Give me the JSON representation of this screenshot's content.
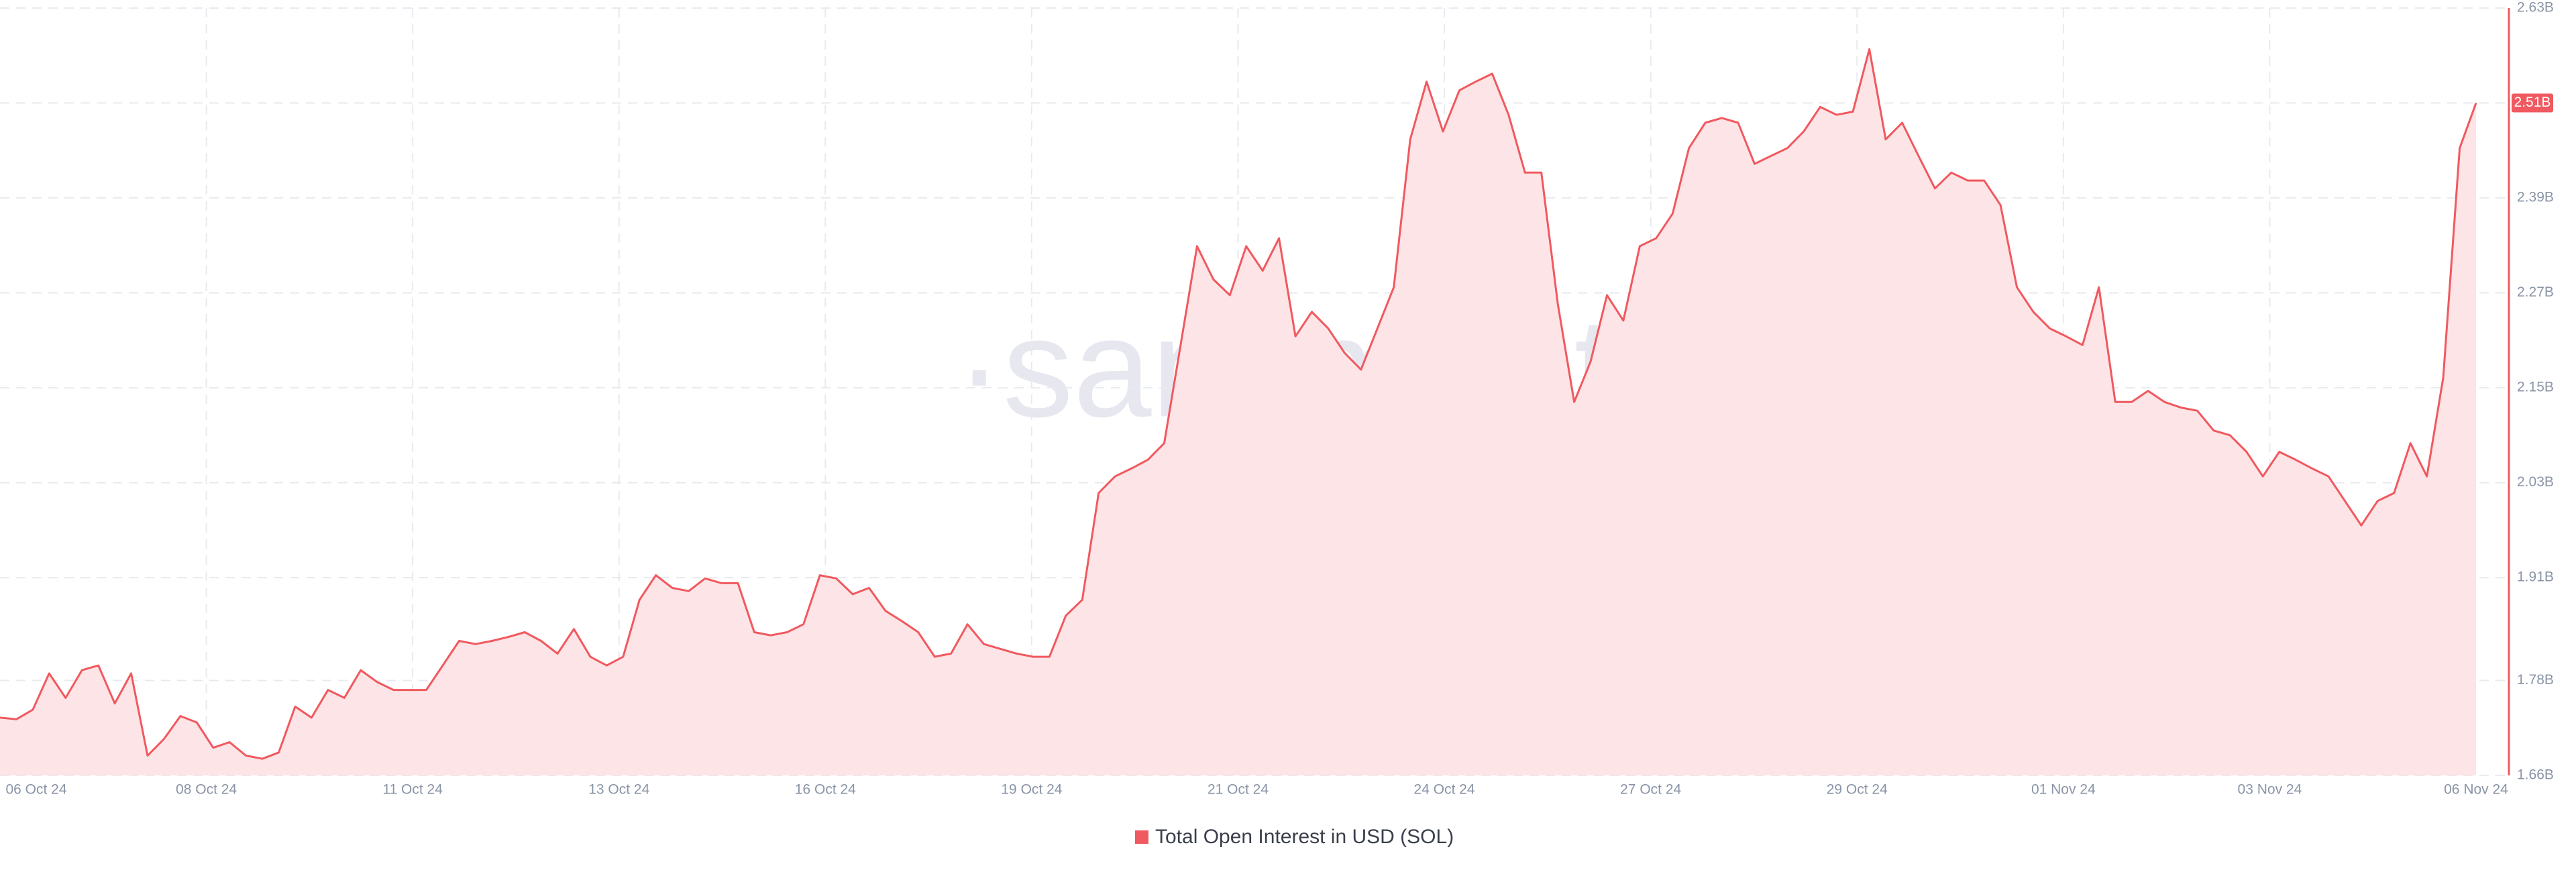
{
  "chart_data": {
    "type": "area",
    "watermark": "·santiment·",
    "x_tick_labels": [
      "06 Oct 24",
      "08 Oct 24",
      "11 Oct 24",
      "13 Oct 24",
      "16 Oct 24",
      "19 Oct 24",
      "21 Oct 24",
      "24 Oct 24",
      "27 Oct 24",
      "29 Oct 24",
      "01 Nov 24",
      "03 Nov 24",
      "06 Nov 24"
    ],
    "ylim": [
      1.66,
      2.63
    ],
    "yticks": [
      {
        "value": 1.66,
        "label": "1.66B"
      },
      {
        "value": 1.78,
        "label": "1.78B"
      },
      {
        "value": 1.91,
        "label": "1.91B"
      },
      {
        "value": 2.03,
        "label": "2.03B"
      },
      {
        "value": 2.15,
        "label": "2.15B"
      },
      {
        "value": 2.27,
        "label": "2.27B"
      },
      {
        "value": 2.39,
        "label": "2.39B"
      },
      {
        "value": 2.51,
        "label": "2.51B"
      },
      {
        "value": 2.63,
        "label": "2.63B"
      }
    ],
    "grid": true,
    "legend": "bottom",
    "series": [
      {
        "name": "Total Open Interest in USD (SOL)",
        "color": "#f0595f",
        "fill": "#fde4e6",
        "values": [
          1.733,
          1.731,
          1.743,
          1.789,
          1.758,
          1.793,
          1.799,
          1.751,
          1.789,
          1.685,
          1.706,
          1.735,
          1.727,
          1.695,
          1.702,
          1.685,
          1.681,
          1.689,
          1.747,
          1.733,
          1.768,
          1.758,
          1.793,
          1.778,
          1.768,
          1.768,
          1.768,
          1.799,
          1.83,
          1.826,
          1.83,
          1.835,
          1.841,
          1.83,
          1.814,
          1.845,
          1.81,
          1.799,
          1.81,
          1.882,
          1.913,
          1.897,
          1.893,
          1.909,
          1.903,
          1.903,
          1.841,
          1.837,
          1.841,
          1.851,
          1.913,
          1.909,
          1.889,
          1.897,
          1.868,
          1.855,
          1.841,
          1.81,
          1.814,
          1.851,
          1.826,
          1.82,
          1.814,
          1.81,
          1.81,
          1.862,
          1.882,
          2.017,
          2.038,
          2.048,
          2.059,
          2.08,
          2.204,
          2.329,
          2.287,
          2.267,
          2.329,
          2.298,
          2.339,
          2.215,
          2.246,
          2.225,
          2.194,
          2.173,
          2.225,
          2.277,
          2.464,
          2.537,
          2.474,
          2.526,
          2.537,
          2.547,
          2.495,
          2.422,
          2.422,
          2.256,
          2.132,
          2.183,
          2.267,
          2.235,
          2.329,
          2.339,
          2.37,
          2.453,
          2.485,
          2.491,
          2.485,
          2.433,
          2.443,
          2.453,
          2.474,
          2.505,
          2.495,
          2.499,
          2.578,
          2.464,
          2.485,
          2.443,
          2.402,
          2.422,
          2.412,
          2.412,
          2.381,
          2.277,
          2.246,
          2.225,
          2.215,
          2.204,
          2.277,
          2.132,
          2.132,
          2.146,
          2.132,
          2.125,
          2.121,
          2.096,
          2.09,
          2.069,
          2.038,
          2.069,
          2.059,
          2.048,
          2.038,
          2.007,
          1.976,
          2.007,
          2.017,
          2.08,
          2.038,
          2.163,
          2.453,
          2.51
        ]
      }
    ]
  }
}
